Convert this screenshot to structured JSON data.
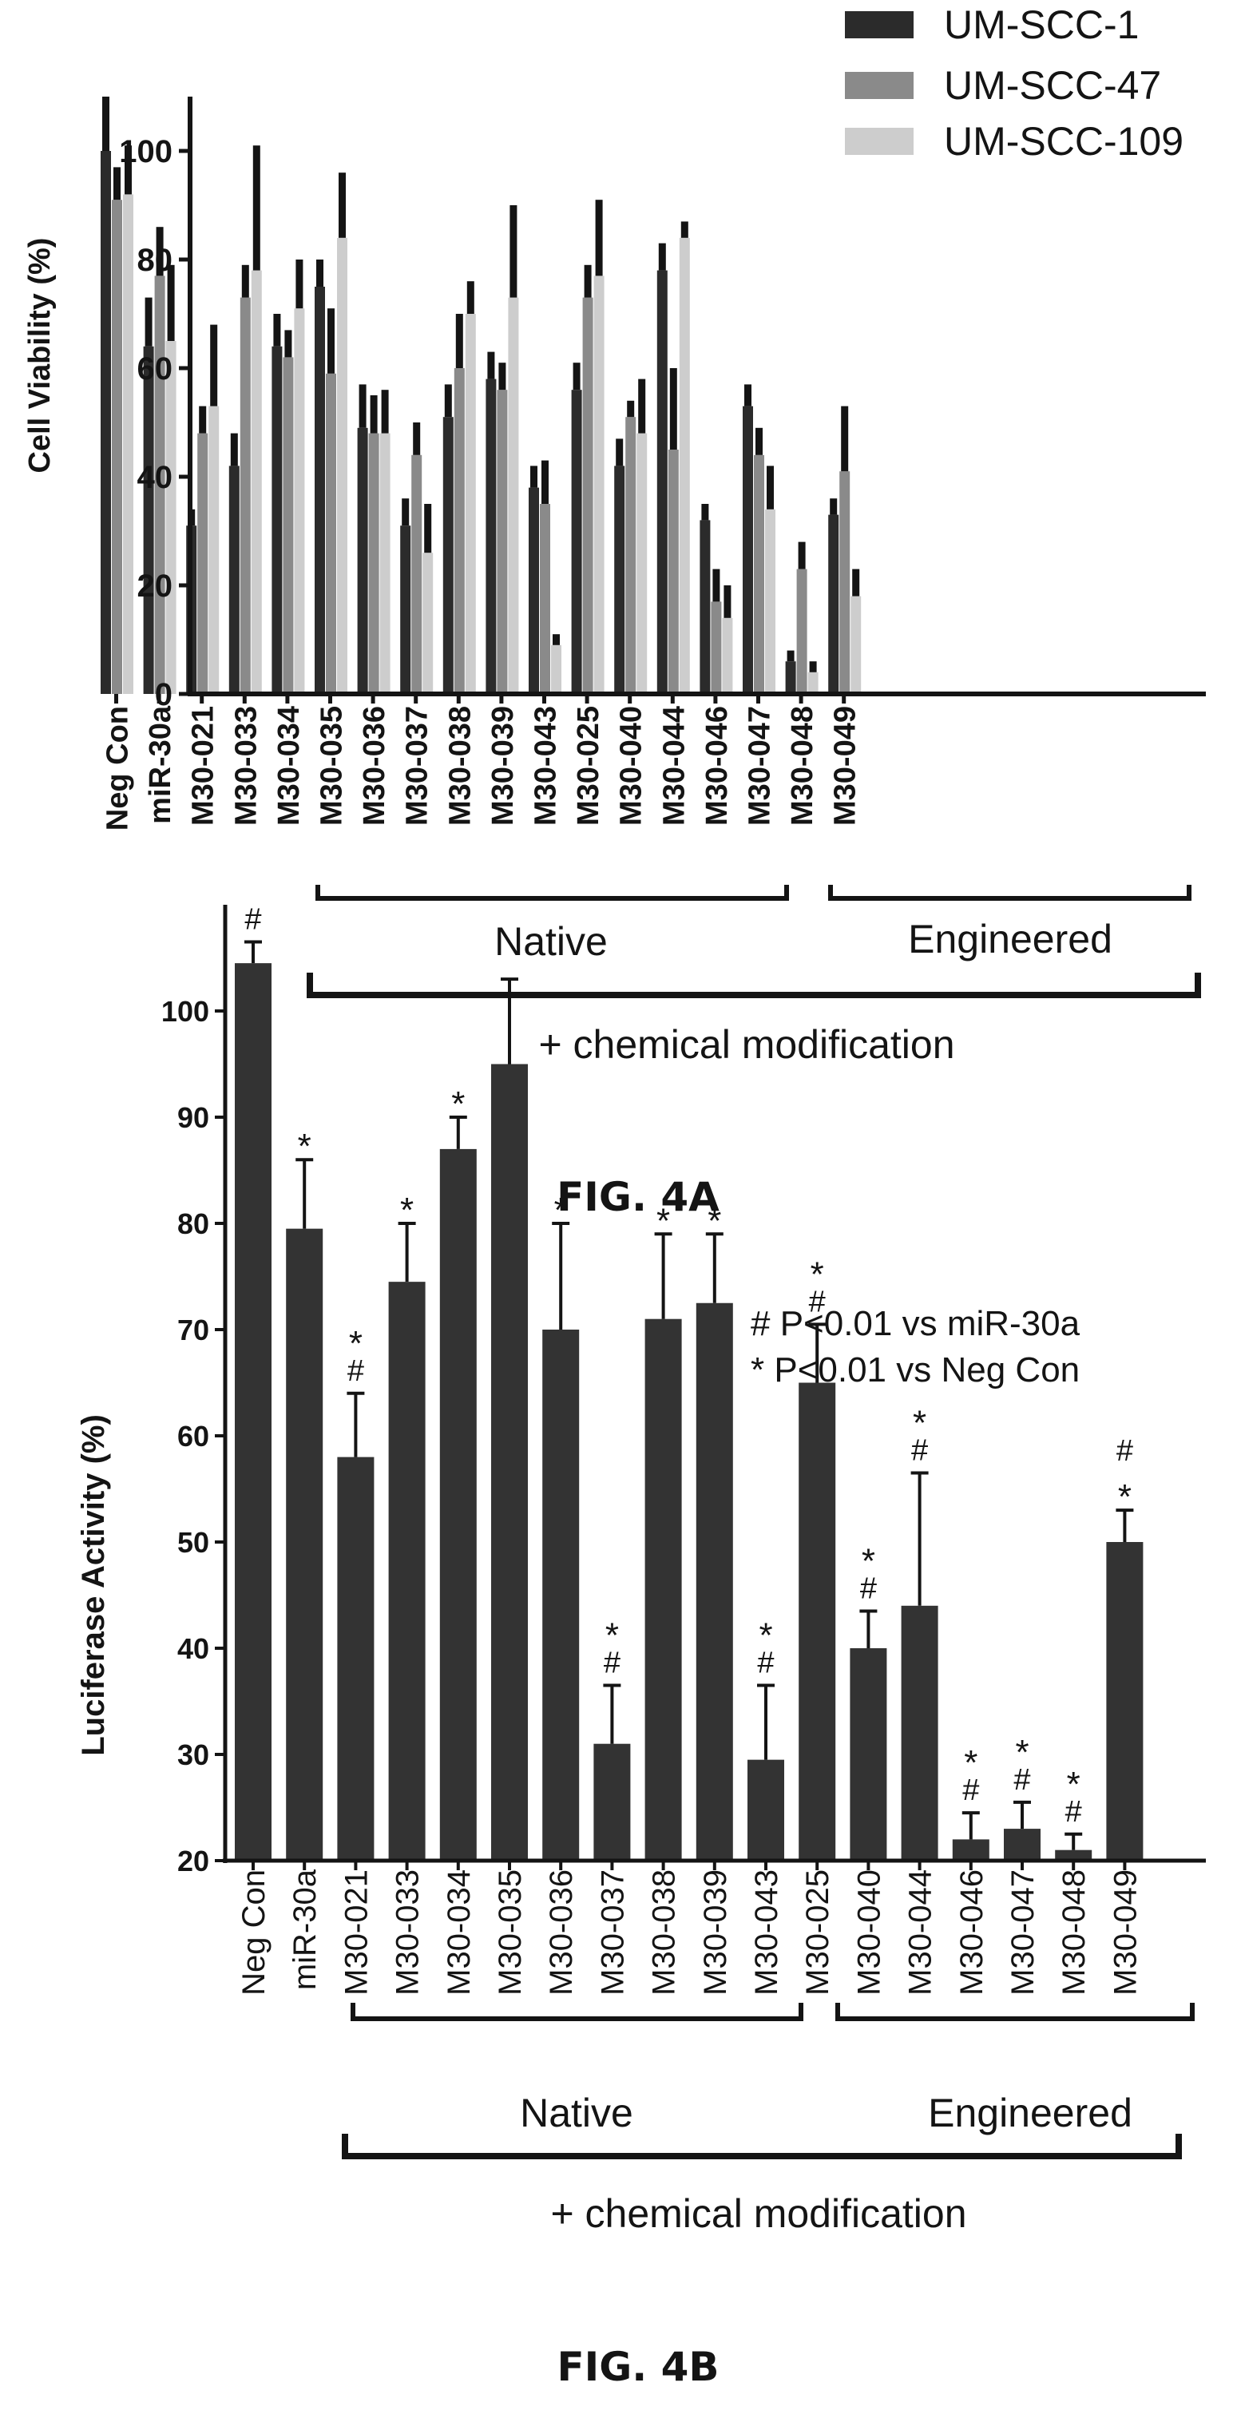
{
  "colors": {
    "ink": "#141414",
    "um_scc_1": "#2b2b2b",
    "um_scc_47": "#8a8a8a",
    "um_scc_109": "#cdcdcd",
    "bar_4b": "#333333"
  },
  "fig_a": {
    "caption": "FIG. 4A",
    "native_label": "Native",
    "engineered_label": "Engineered",
    "modification_label": "+ chemical modification"
  },
  "fig_b": {
    "caption": "FIG. 4B",
    "native_label": "Native",
    "engineered_label": "Engineered",
    "modification_label": "+ chemical modification",
    "note_hash": "# P<0.01 vs miR-30a",
    "note_star": "* P<0.01 vs Neg  Con"
  },
  "chart_data": [
    {
      "type": "bar",
      "title": "",
      "xlabel": "",
      "ylabel": "Cell Viability (%)",
      "ylim": [
        0,
        110
      ],
      "yticks": [
        0,
        20,
        40,
        60,
        80,
        100
      ],
      "grid": false,
      "legend": "top-right",
      "categories": [
        "Neg Con",
        "miR-30a",
        "M30-021",
        "M30-033",
        "M30-034",
        "M30-035",
        "M30-036",
        "M30-037",
        "M30-038",
        "M30-039",
        "M30-043",
        "M30-025",
        "M30-040",
        "M30-044",
        "M30-046",
        "M30-047",
        "M30-048",
        "M30-049"
      ],
      "series": [
        {
          "name": "UM-SCC-1",
          "values": [
            100,
            64,
            31,
            42,
            64,
            75,
            49,
            31,
            51,
            58,
            38,
            56,
            42,
            78,
            32,
            53,
            6,
            33
          ],
          "error": [
            10,
            9,
            3,
            6,
            6,
            5,
            8,
            5,
            6,
            5,
            4,
            5,
            5,
            5,
            3,
            4,
            2,
            3
          ]
        },
        {
          "name": "UM-SCC-47",
          "values": [
            91,
            77,
            48,
            73,
            62,
            59,
            48,
            44,
            60,
            56,
            35,
            73,
            51,
            45,
            17,
            44,
            23,
            41
          ],
          "error": [
            6,
            9,
            5,
            6,
            5,
            12,
            7,
            6,
            10,
            5,
            8,
            6,
            3,
            15,
            6,
            5,
            5,
            12
          ]
        },
        {
          "name": "UM-SCC-109",
          "values": [
            92,
            65,
            53,
            78,
            71,
            84,
            48,
            26,
            70,
            73,
            9,
            77,
            48,
            84,
            14,
            34,
            4,
            18
          ],
          "error": [
            9,
            14,
            15,
            23,
            9,
            12,
            8,
            9,
            6,
            17,
            2,
            14,
            10,
            3,
            6,
            8,
            2,
            5
          ]
        }
      ]
    },
    {
      "type": "bar",
      "title": "",
      "xlabel": "",
      "ylabel": "Luciferase  Activity (%)",
      "ylim": [
        20,
        110
      ],
      "yticks": [
        20,
        30,
        40,
        50,
        60,
        70,
        80,
        90,
        100
      ],
      "grid": false,
      "categories": [
        "Neg Con",
        "miR-30a",
        "M30-021",
        "M30-033",
        "M30-034",
        "M30-035",
        "M30-036",
        "M30-037",
        "M30-038",
        "M30-039",
        "M30-043",
        "M30-025",
        "M30-040",
        "M30-044",
        "M30-046",
        "M30-047",
        "M30-048",
        "M30-049"
      ],
      "values": [
        104.5,
        79.5,
        58,
        74.5,
        87,
        95,
        70,
        31,
        71,
        72.5,
        29.5,
        65,
        40,
        44,
        22,
        23,
        21,
        50
      ],
      "error": [
        2,
        6.5,
        6,
        5.5,
        3,
        8,
        10,
        5.5,
        8,
        6.5,
        7,
        5.5,
        3.5,
        12.5,
        2.5,
        2.5,
        1.5,
        3
      ],
      "annotations": [
        "#",
        "*",
        "*\n#",
        "*",
        "*",
        "",
        "*",
        "*\n#",
        "*",
        "*",
        "*\n#",
        "*\n#",
        "*\n#",
        "*\n#",
        "*\n#",
        "*\n#",
        "*\n#",
        "#\n*"
      ]
    }
  ]
}
